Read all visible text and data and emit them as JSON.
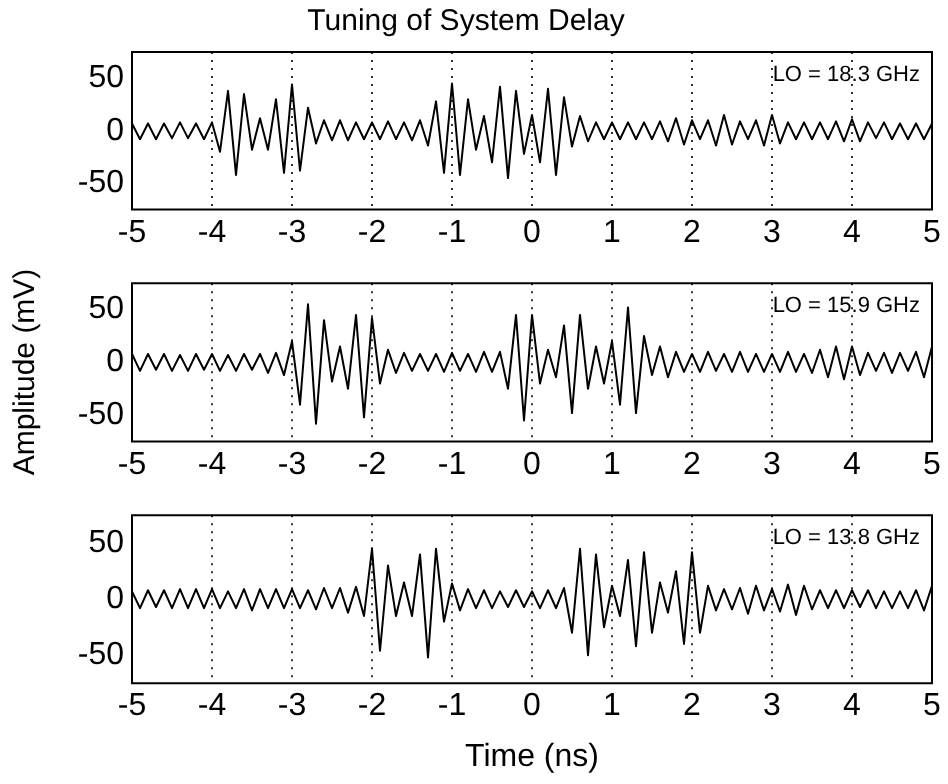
{
  "chart_data": [
    {
      "type": "line",
      "title": "Tuning of System Delay",
      "annotations": [
        "LO = 18.3 GHz"
      ],
      "xlim": [
        -5,
        5
      ],
      "ylim": [
        -75,
        75
      ],
      "xticks": [
        -5,
        -4,
        -3,
        -2,
        -1,
        0,
        1,
        2,
        3,
        4,
        5
      ],
      "yticks": [
        -50,
        0,
        50
      ],
      "grid": "x",
      "marker": "none",
      "x": [
        -5,
        -4.9,
        -4.8,
        -4.7,
        -4.6,
        -4.5,
        -4.4,
        -4.3,
        -4.2,
        -4.1,
        -4,
        -3.9,
        -3.8,
        -3.7,
        -3.6,
        -3.5,
        -3.4,
        -3.3,
        -3.2,
        -3.1,
        -3,
        -2.9,
        -2.8,
        -2.7,
        -2.6,
        -2.5,
        -2.4,
        -2.3,
        -2.2,
        -2.1,
        -2,
        -1.9,
        -1.8,
        -1.7,
        -1.6,
        -1.5,
        -1.4,
        -1.3,
        -1.2,
        -1.1,
        -1,
        -0.9,
        -0.8,
        -0.7,
        -0.6,
        -0.5,
        -0.4,
        -0.3,
        -0.2,
        -0.1,
        0,
        0.1,
        0.2,
        0.3,
        0.4,
        0.5,
        0.6,
        0.7,
        0.8,
        0.9,
        1,
        1.1,
        1.2,
        1.3,
        1.4,
        1.5,
        1.6,
        1.7,
        1.8,
        1.9,
        2,
        2.1,
        2.2,
        2.3,
        2.4,
        2.5,
        2.6,
        2.7,
        2.8,
        2.9,
        3,
        3.1,
        3.2,
        3.3,
        3.4,
        3.5,
        3.6,
        3.7,
        3.8,
        3.9,
        4,
        4.1,
        4.2,
        4.3,
        4.4,
        4.5,
        4.6,
        4.7,
        4.8,
        4.9,
        5
      ],
      "series": [
        {
          "color": "#000000",
          "values": [
            7,
            -8,
            7,
            -8,
            7,
            -7,
            8,
            -7,
            7,
            -8,
            8,
            -20,
            38,
            -42,
            35,
            -18,
            12,
            -18,
            30,
            -40,
            44,
            -38,
            22,
            -12,
            10,
            -9,
            10,
            -9,
            8,
            -8,
            8,
            -8,
            9,
            -8,
            8,
            -9,
            10,
            -14,
            28,
            -40,
            45,
            -42,
            30,
            -18,
            14,
            -30,
            42,
            -45,
            38,
            -22,
            15,
            -30,
            40,
            -42,
            32,
            -15,
            14,
            -10,
            8,
            -8,
            8,
            -8,
            8,
            -8,
            8,
            -8,
            9,
            -10,
            12,
            -13,
            10,
            -8,
            10,
            -14,
            15,
            -13,
            9,
            -8,
            10,
            -14,
            15,
            -12,
            8,
            -8,
            8,
            -8,
            8,
            -8,
            9,
            -10,
            11,
            -10,
            8,
            -7,
            8,
            -8,
            7,
            -8,
            7,
            -8,
            7
          ]
        }
      ]
    },
    {
      "type": "line",
      "ylabel": "Amplitude (mV)",
      "annotations": [
        "LO = 15.9 GHz"
      ],
      "xlim": [
        -5,
        5
      ],
      "ylim": [
        -75,
        75
      ],
      "xticks": [
        -5,
        -4,
        -3,
        -2,
        -1,
        0,
        1,
        2,
        3,
        4,
        5
      ],
      "yticks": [
        -50,
        0,
        50
      ],
      "grid": "x",
      "marker": "none",
      "x": [
        -5,
        -4.9,
        -4.8,
        -4.7,
        -4.6,
        -4.5,
        -4.4,
        -4.3,
        -4.2,
        -4.1,
        -4,
        -3.9,
        -3.8,
        -3.7,
        -3.6,
        -3.5,
        -3.4,
        -3.3,
        -3.2,
        -3.1,
        -3,
        -2.9,
        -2.8,
        -2.7,
        -2.6,
        -2.5,
        -2.4,
        -2.3,
        -2.2,
        -2.1,
        -2,
        -1.9,
        -1.8,
        -1.7,
        -1.6,
        -1.5,
        -1.4,
        -1.3,
        -1.2,
        -1.1,
        -1,
        -0.9,
        -0.8,
        -0.7,
        -0.6,
        -0.5,
        -0.4,
        -0.3,
        -0.2,
        -0.1,
        0,
        0.1,
        0.2,
        0.3,
        0.4,
        0.5,
        0.6,
        0.7,
        0.8,
        0.9,
        1,
        1.1,
        1.2,
        1.3,
        1.4,
        1.5,
        1.6,
        1.7,
        1.8,
        1.9,
        2,
        2.1,
        2.2,
        2.3,
        2.4,
        2.5,
        2.6,
        2.7,
        2.8,
        2.9,
        3,
        3.1,
        3.2,
        3.3,
        3.4,
        3.5,
        3.6,
        3.7,
        3.8,
        3.9,
        4,
        4.1,
        4.2,
        4.3,
        4.4,
        4.5,
        4.6,
        4.7,
        4.8,
        4.9,
        5
      ],
      "series": [
        {
          "color": "#000000",
          "values": [
            8,
            -8,
            8,
            -7,
            8,
            -8,
            7,
            -8,
            8,
            -7,
            8,
            -8,
            7,
            -8,
            8,
            -7,
            8,
            -10,
            9,
            -12,
            20,
            -40,
            55,
            -58,
            40,
            -18,
            15,
            -25,
            45,
            -52,
            42,
            -20,
            12,
            -10,
            9,
            -8,
            8,
            -8,
            8,
            -9,
            9,
            -8,
            8,
            -9,
            10,
            -9,
            10,
            -25,
            45,
            -55,
            45,
            -20,
            12,
            -14,
            35,
            -48,
            45,
            -25,
            15,
            -20,
            20,
            -40,
            52,
            -48,
            25,
            -12,
            15,
            -14,
            10,
            -9,
            8,
            -9,
            10,
            -8,
            8,
            -9,
            10,
            -9,
            8,
            -9,
            8,
            -9,
            10,
            -9,
            8,
            -10,
            12,
            -14,
            15,
            -16,
            15,
            -12,
            9,
            -8,
            9,
            -10,
            9,
            -8,
            10,
            -14,
            15
          ]
        }
      ]
    },
    {
      "type": "line",
      "xlabel": "Time (ns)",
      "annotations": [
        "LO = 13.8 GHz"
      ],
      "xlim": [
        -5,
        5
      ],
      "ylim": [
        -75,
        75
      ],
      "xticks": [
        -5,
        -4,
        -3,
        -2,
        -1,
        0,
        1,
        2,
        3,
        4,
        5
      ],
      "yticks": [
        -50,
        0,
        50
      ],
      "grid": "x",
      "marker": "none",
      "x": [
        -5,
        -4.9,
        -4.8,
        -4.7,
        -4.6,
        -4.5,
        -4.4,
        -4.3,
        -4.2,
        -4.1,
        -4,
        -3.9,
        -3.8,
        -3.7,
        -3.6,
        -3.5,
        -3.4,
        -3.3,
        -3.2,
        -3.1,
        -3,
        -2.9,
        -2.8,
        -2.7,
        -2.6,
        -2.5,
        -2.4,
        -2.3,
        -2.2,
        -2.1,
        -2,
        -1.9,
        -1.8,
        -1.7,
        -1.6,
        -1.5,
        -1.4,
        -1.3,
        -1.2,
        -1.1,
        -1,
        -0.9,
        -0.8,
        -0.7,
        -0.6,
        -0.5,
        -0.4,
        -0.3,
        -0.2,
        -0.1,
        0,
        0.1,
        0.2,
        0.3,
        0.4,
        0.5,
        0.6,
        0.7,
        0.8,
        0.9,
        1,
        1.1,
        1.2,
        1.3,
        1.4,
        1.5,
        1.6,
        1.7,
        1.8,
        1.9,
        2,
        2.1,
        2.2,
        2.3,
        2.4,
        2.5,
        2.6,
        2.7,
        2.8,
        2.9,
        3,
        3.1,
        3.2,
        3.3,
        3.4,
        3.5,
        3.6,
        3.7,
        3.8,
        3.9,
        4,
        4.1,
        4.2,
        4.3,
        4.4,
        4.5,
        4.6,
        4.7,
        4.8,
        4.9,
        5
      ],
      "series": [
        {
          "color": "#000000",
          "values": [
            7,
            -8,
            8,
            -7,
            8,
            -8,
            9,
            -8,
            9,
            -8,
            9,
            -8,
            7,
            -8,
            9,
            -10,
            9,
            -8,
            9,
            -8,
            9,
            -8,
            8,
            -9,
            10,
            -8,
            10,
            -12,
            11,
            -15,
            45,
            -46,
            30,
            -15,
            15,
            -15,
            40,
            -52,
            45,
            -20,
            14,
            -10,
            9,
            -8,
            8,
            -8,
            7,
            -7,
            8,
            -7,
            7,
            -8,
            8,
            -8,
            10,
            -30,
            45,
            -50,
            40,
            -25,
            12,
            -15,
            35,
            -42,
            42,
            -30,
            15,
            -12,
            25,
            -40,
            42,
            -30,
            12,
            -10,
            9,
            -9,
            10,
            -13,
            12,
            -10,
            9,
            -11,
            13,
            -14,
            12,
            -9,
            8,
            -8,
            8,
            -8,
            8,
            -7,
            8,
            -8,
            7,
            -8,
            7,
            -8,
            8,
            -10,
            12
          ]
        }
      ]
    }
  ]
}
